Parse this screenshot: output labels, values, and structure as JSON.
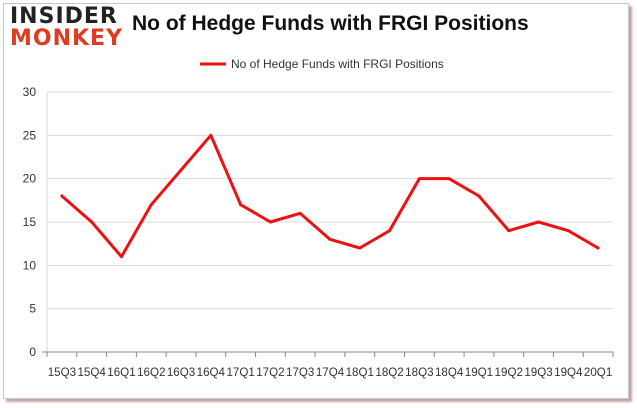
{
  "logo": {
    "line1": "INSIDER",
    "line2": "MONKEY"
  },
  "colors": {
    "series": "#ee1111",
    "grid": "#d9d9d9",
    "axis": "#444444",
    "logo_accent": "#e03b1f"
  },
  "chart_data": {
    "type": "line",
    "title": "No of Hedge Funds with FRGI Positions",
    "xlabel": "",
    "ylabel": "",
    "legend": "top-center",
    "grid": true,
    "ylim": [
      0,
      30
    ],
    "yticks": [
      0,
      5,
      10,
      15,
      20,
      25,
      30
    ],
    "categories": [
      "15Q3",
      "15Q4",
      "16Q1",
      "16Q2",
      "16Q3",
      "16Q4",
      "17Q1",
      "17Q2",
      "17Q3",
      "17Q4",
      "18Q1",
      "18Q2",
      "18Q3",
      "18Q4",
      "19Q1",
      "19Q2",
      "19Q3",
      "19Q4",
      "20Q1"
    ],
    "series": [
      {
        "name": "No of Hedge Funds with FRGI Positions",
        "values": [
          18,
          15,
          11,
          17,
          21,
          25,
          17,
          15,
          16,
          13,
          12,
          14,
          20,
          20,
          18,
          14,
          15,
          14,
          12
        ]
      }
    ]
  }
}
